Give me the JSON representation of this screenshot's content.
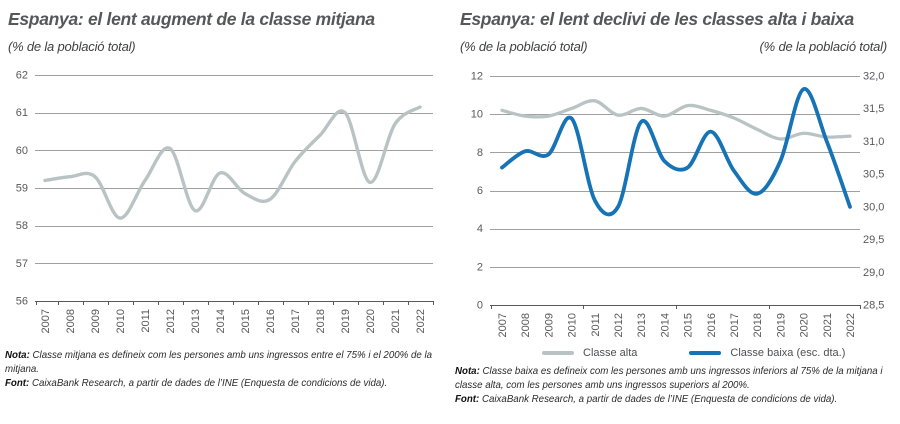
{
  "panels": {
    "left": {
      "title": "Espanya: el lent augment de la classe mitjana",
      "subtitle": "(% de la població total)",
      "nota_label": "Nota:",
      "nota_text": "Classe mitjana es defineix com les persones amb uns ingressos entre el 75% i el 200% de la mitjana.",
      "font_label": "Font:",
      "font_text": "CaixaBank Research, a partir de dades de l’INE (Enquesta de condicions de vida)."
    },
    "right": {
      "title": "Espanya: el lent declivi de les classes alta i baixa",
      "subtitle_left": "(% de la població total)",
      "subtitle_right": "(% de la població total)",
      "nota_label": "Nota:",
      "nota_text": "Classe baixa es defineix com les persones amb uns ingressos inferiors al 75% de la mitjana i classe alta, com les persones amb uns ingressos superiors al 200%.",
      "font_label": "Font:",
      "font_text": "CaixaBank Research, a partir de dades de l’INE (Enquesta de condicions de vida)."
    }
  },
  "colors": {
    "line_gray": "#b9c3c3",
    "line_blue": "#1573b6",
    "grid": "#a0a0a0",
    "axis": "#58595b",
    "text": "#58595b"
  },
  "chart_data": [
    {
      "type": "line",
      "title": "Espanya: el lent augment de la classe mitjana",
      "subtitle": "(% de la població total)",
      "categories": [
        "2007",
        "2008",
        "2009",
        "2010",
        "2011",
        "2012",
        "2013",
        "2014",
        "2015",
        "2016",
        "2017",
        "2018",
        "2019",
        "2020",
        "2021",
        "2022"
      ],
      "series": [
        {
          "name": "Classe mitjana",
          "axis": "left",
          "color": "#b9c3c3",
          "values": [
            59.2,
            59.3,
            59.3,
            58.2,
            59.2,
            60.05,
            58.4,
            59.4,
            58.85,
            58.7,
            59.7,
            60.4,
            61.0,
            59.15,
            60.7,
            61.15
          ]
        }
      ],
      "ylim": [
        56,
        62
      ],
      "yticks": [
        62,
        61,
        60,
        59,
        58,
        57,
        56
      ],
      "grid": true,
      "legend": false
    },
    {
      "type": "line",
      "title": "Espanya: el lent declivi de les classes alta i baixa",
      "subtitle_left": "(% de la població total)",
      "subtitle_right": "(% de la població total)",
      "categories": [
        "2007",
        "2008",
        "2009",
        "2010",
        "2011",
        "2012",
        "2013",
        "2014",
        "2015",
        "2016",
        "2017",
        "2018",
        "2019",
        "2020",
        "2021",
        "2022"
      ],
      "series": [
        {
          "name": "Classe alta",
          "axis": "left",
          "color": "#b9c3c3",
          "values": [
            10.2,
            9.9,
            9.9,
            10.3,
            10.7,
            9.95,
            10.3,
            9.9,
            10.45,
            10.2,
            9.8,
            9.2,
            8.7,
            9.0,
            8.8,
            8.85
          ]
        },
        {
          "name": "Classe baixa (esc. dta.)",
          "axis": "right",
          "color": "#1573b6",
          "values": [
            30.6,
            30.85,
            30.8,
            31.35,
            30.1,
            30.0,
            31.3,
            30.7,
            30.6,
            31.15,
            30.55,
            30.2,
            30.7,
            31.8,
            31.0,
            30.0
          ]
        }
      ],
      "ylim_left": [
        0,
        12
      ],
      "yticks_left": [
        12,
        10,
        8,
        6,
        4,
        2,
        0
      ],
      "ylim_right": [
        28.5,
        32.0
      ],
      "yticks_right": [
        "32,0",
        "31,5",
        "31,0",
        "30,5",
        "30,0",
        "29,5",
        "29,0",
        "28,5"
      ],
      "grid": true,
      "legend": "bottom"
    }
  ]
}
